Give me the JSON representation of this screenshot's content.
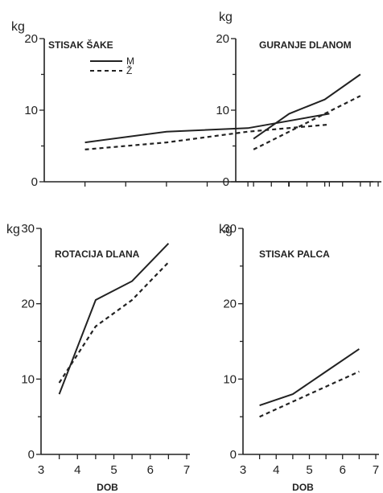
{
  "chart_data": [
    {
      "type": "line",
      "title": "STISAK ŠAKE",
      "ylabel": "kg",
      "xlabel": "",
      "x": [
        3.5,
        4.5,
        5.5,
        6.5
      ],
      "ylim": [
        0,
        20
      ],
      "xlim": [
        3,
        7
      ],
      "yticks": [
        "0",
        "10",
        "20"
      ],
      "xticks": [],
      "series": [
        {
          "name": "M",
          "style": "solid",
          "values": [
            5.5,
            7.0,
            7.5,
            9.5
          ]
        },
        {
          "name": "Ž",
          "style": "dashed",
          "values": [
            4.5,
            5.5,
            7.0,
            8.0
          ]
        }
      ],
      "legend": "top-center"
    },
    {
      "type": "line",
      "title": "GURANJE DLANOM",
      "ylabel": "kg",
      "xlabel": "",
      "x": [
        3.5,
        4.5,
        5.5,
        6.5
      ],
      "ylim": [
        0,
        20
      ],
      "xlim": [
        3,
        7
      ],
      "yticks": [
        "0",
        "10",
        "20"
      ],
      "xticks": [],
      "series": [
        {
          "name": "M",
          "style": "solid",
          "values": [
            6.0,
            9.5,
            11.5,
            15.0
          ]
        },
        {
          "name": "Ž",
          "style": "dashed",
          "values": [
            4.5,
            7.0,
            9.5,
            12.0
          ]
        }
      ]
    },
    {
      "type": "line",
      "title": "ROTACIJA DLANA",
      "ylabel": "kg",
      "xlabel": "DOB",
      "x": [
        3.5,
        4.5,
        5.5,
        6.5
      ],
      "ylim": [
        0,
        30
      ],
      "xlim": [
        3,
        7
      ],
      "yticks": [
        "0",
        "10",
        "20",
        "30"
      ],
      "xticks": [
        "3",
        "4",
        "5",
        "6",
        "7"
      ],
      "series": [
        {
          "name": "M",
          "style": "solid",
          "values": [
            8.0,
            20.5,
            23.0,
            28.0
          ]
        },
        {
          "name": "Ž",
          "style": "dashed",
          "values": [
            9.5,
            17.0,
            20.5,
            25.5
          ]
        }
      ]
    },
    {
      "type": "line",
      "title": "STISAK PALCA",
      "ylabel": "kg",
      "xlabel": "DOB",
      "x": [
        3.5,
        4.5,
        5.5,
        6.5
      ],
      "ylim": [
        0,
        30
      ],
      "xlim": [
        3,
        7
      ],
      "yticks": [
        "0",
        "10",
        "20",
        "30"
      ],
      "xticks": [
        "3",
        "4",
        "5",
        "6",
        "7"
      ],
      "series": [
        {
          "name": "M",
          "style": "solid",
          "values": [
            6.5,
            8.0,
            11.0,
            14.0
          ]
        },
        {
          "name": "Ž",
          "style": "dashed",
          "values": [
            5.0,
            7.0,
            9.0,
            11.0
          ]
        }
      ]
    }
  ],
  "legend": {
    "entries": [
      {
        "label": "M",
        "style": "solid"
      },
      {
        "label": "Ž",
        "style": "dashed"
      }
    ]
  },
  "colors": {
    "line": "#222222",
    "axis": "#222222",
    "background": "#ffffff"
  }
}
